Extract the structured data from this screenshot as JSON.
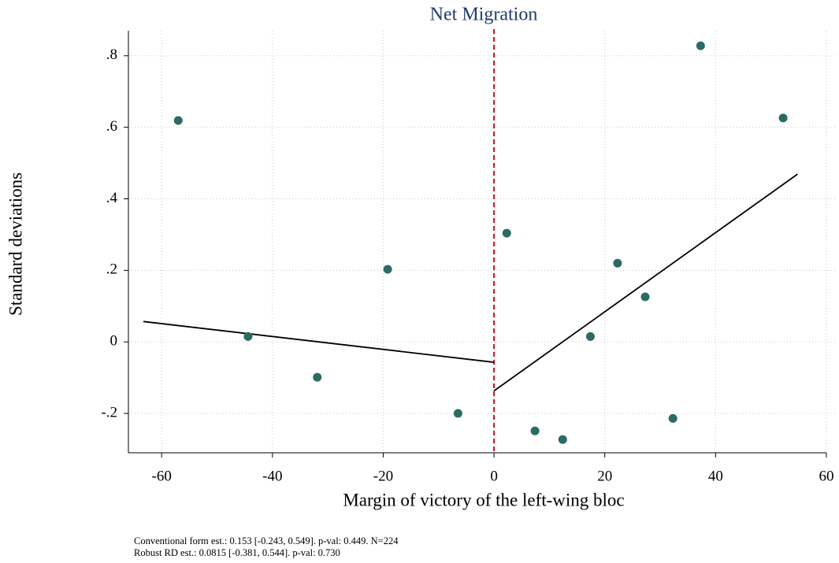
{
  "chart_data": {
    "type": "scatter",
    "title": "Net Migration",
    "x_label": "Margin of victory of the left-wing bloc",
    "y_label": "Standard deviations",
    "xlim": [
      -66,
      62
    ],
    "ylim": [
      -0.31,
      0.87
    ],
    "xticks": [
      -60,
      -40,
      -20,
      0,
      20,
      40,
      60
    ],
    "yticks": [
      {
        "value": -0.2,
        "label": "-.2"
      },
      0,
      {
        "value": 0.2,
        "label": ".2"
      },
      {
        "value": 0.4,
        "label": ".4"
      },
      {
        "value": 0.6,
        "label": ".6"
      },
      {
        "value": 0.8,
        "label": ".8"
      }
    ],
    "grid": true,
    "cutoff": 0,
    "cutoff_color": "#c8102e",
    "series": [
      {
        "color": "#2a6b63",
        "x": [
          -57.0,
          -44.4,
          -31.9,
          -19.2,
          -6.5,
          2.3,
          7.4,
          12.4,
          17.4,
          22.3,
          27.3,
          32.3,
          37.3,
          52.2
        ],
        "values": [
          0.619,
          0.015,
          -0.099,
          0.203,
          -0.2,
          0.304,
          -0.249,
          -0.273,
          0.015,
          0.22,
          0.126,
          -0.214,
          0.828,
          0.626
        ]
      }
    ],
    "fit_lines": [
      {
        "color": "#000000",
        "x": [
          -63.3,
          0
        ],
        "values": [
          0.057,
          -0.057
        ]
      },
      {
        "color": "#000000",
        "x": [
          0,
          54.8
        ],
        "values": [
          -0.137,
          0.469
        ]
      }
    ],
    "notes": [
      "Conventional form est.: 0.153  [-0.243, 0.549]. p-val: 0.449. N=224",
      "Robust RD est.: 0.0815 [-0.381, 0.544]. p-val: 0.730"
    ]
  }
}
